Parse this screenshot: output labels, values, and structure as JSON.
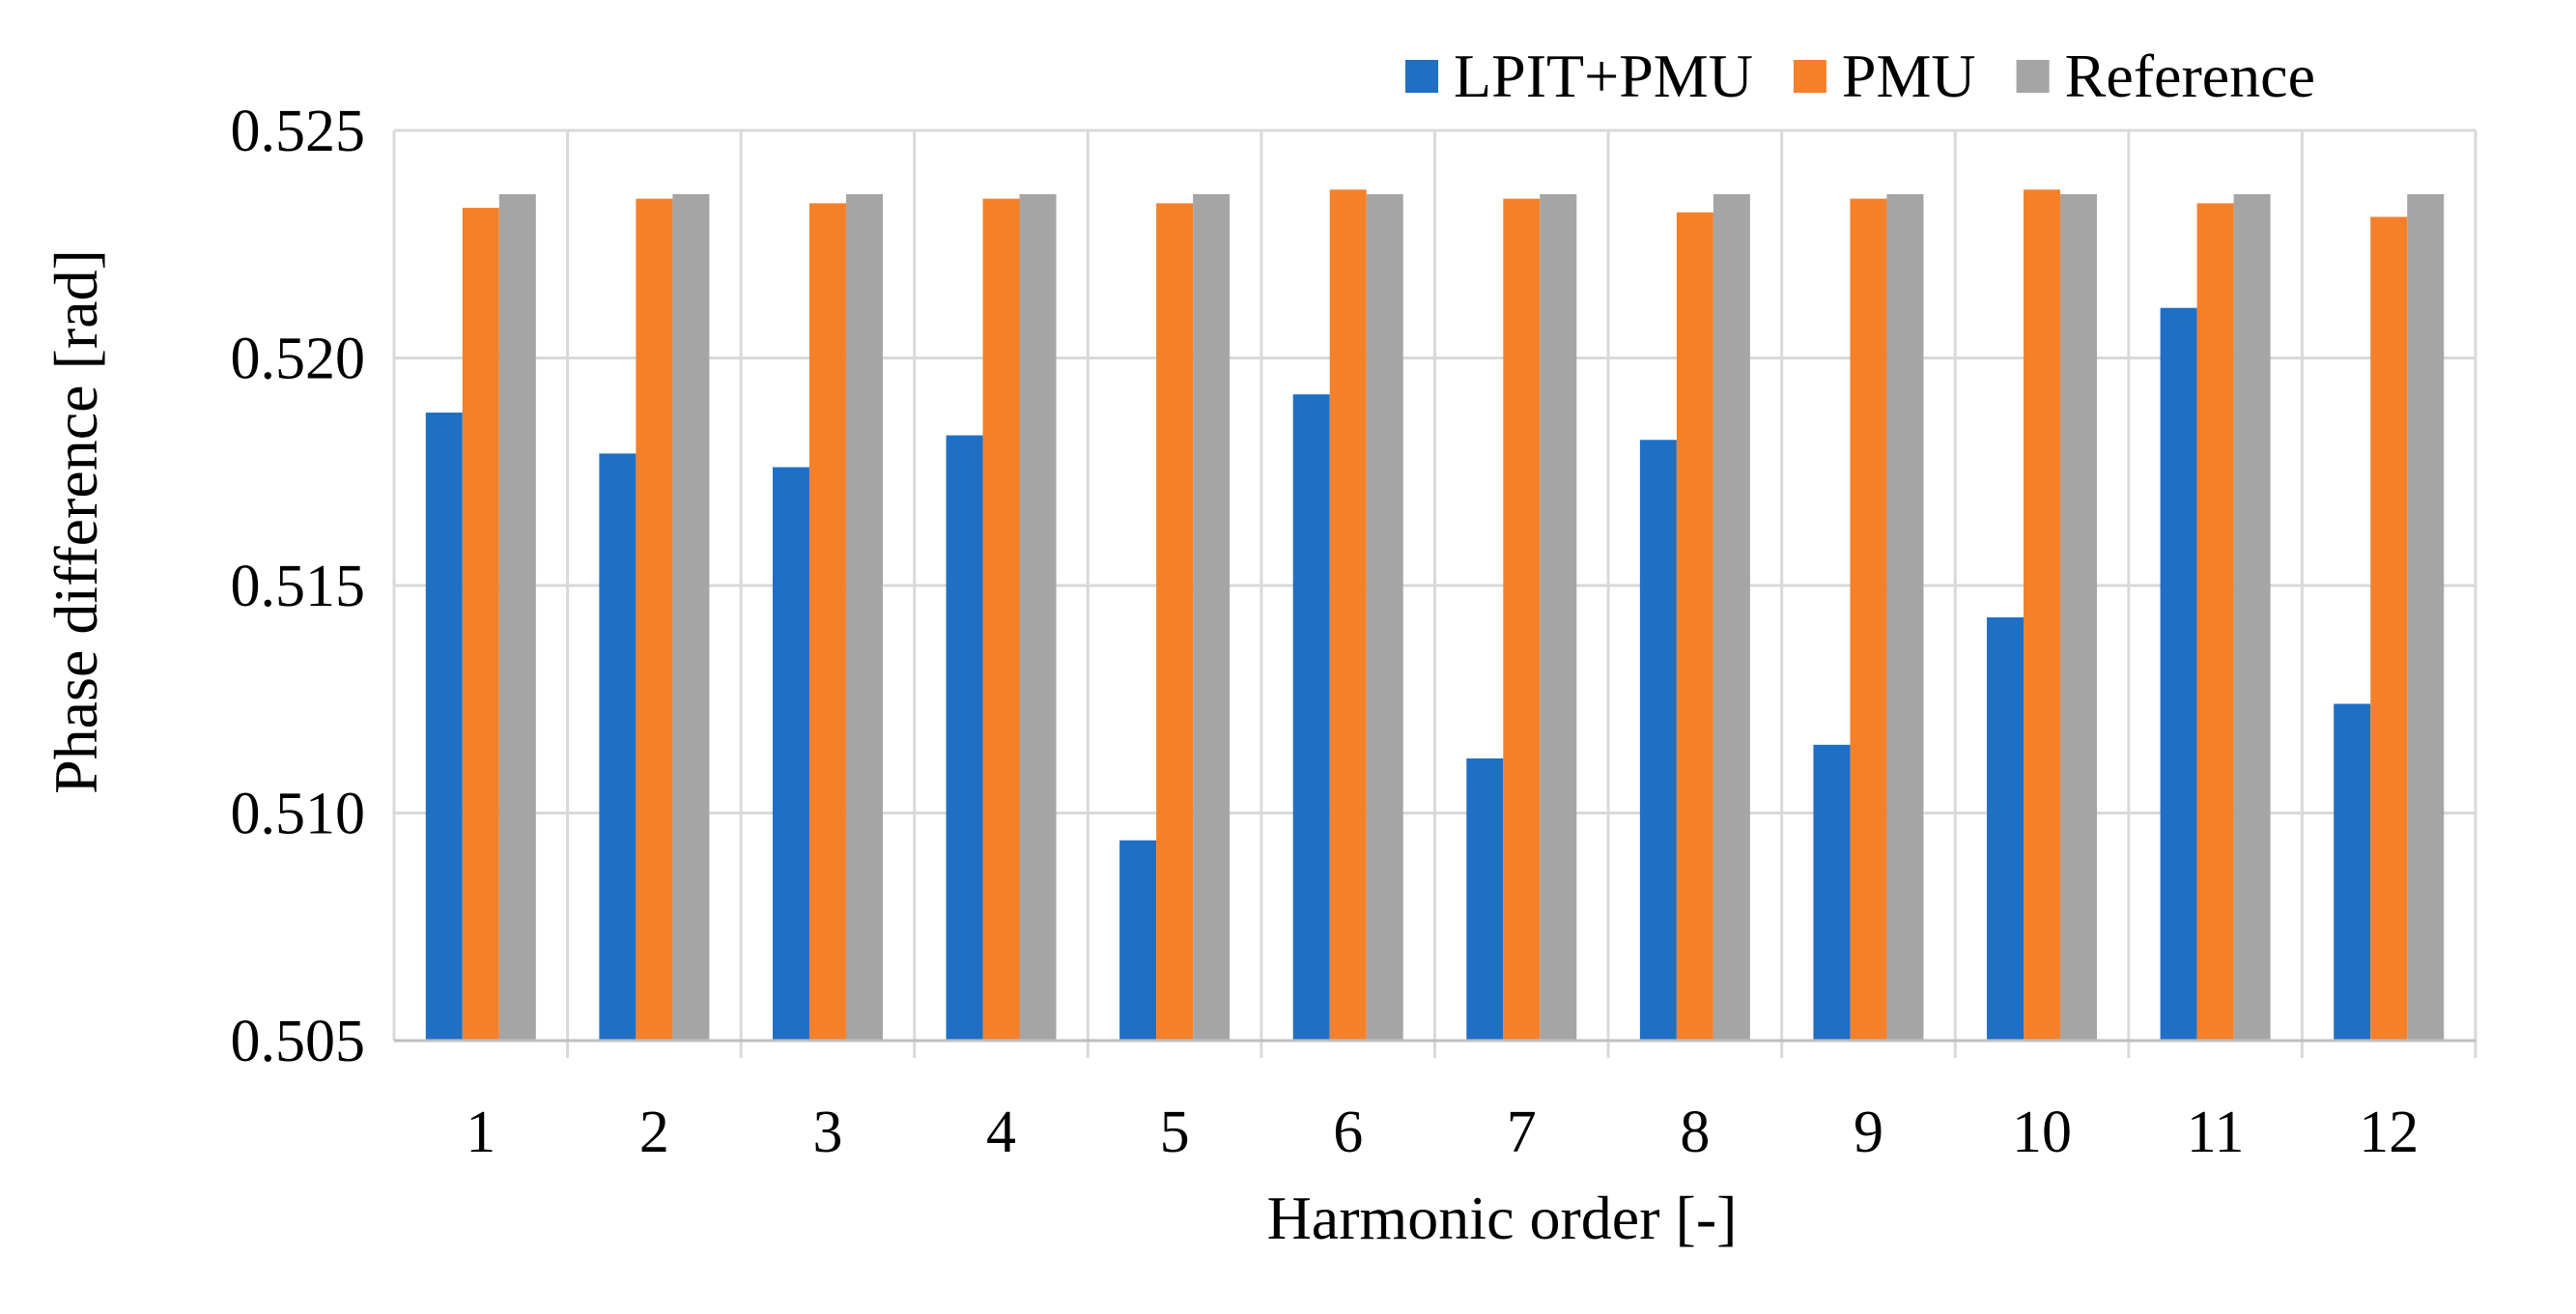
{
  "chart_data": {
    "type": "bar",
    "title": "",
    "xlabel": "Harmonic order [-]",
    "ylabel": "Phase difference [rad]",
    "categories": [
      "1",
      "2",
      "3",
      "4",
      "5",
      "6",
      "7",
      "8",
      "9",
      "10",
      "11",
      "12"
    ],
    "ylim": [
      0.505,
      0.525
    ],
    "yticks": [
      0.505,
      0.51,
      0.515,
      0.52,
      0.525
    ],
    "ytick_labels": [
      "0.505",
      "0.510",
      "0.515",
      "0.520",
      "0.525"
    ],
    "grid": true,
    "legend_position": "top-right",
    "series": [
      {
        "name": "LPIT+PMU",
        "color": "#1f6fc5",
        "values": [
          0.5188,
          0.5179,
          0.5176,
          0.5183,
          0.5094,
          0.5192,
          0.5112,
          0.5182,
          0.5115,
          0.5143,
          0.5211,
          0.5124
        ]
      },
      {
        "name": "PMU",
        "color": "#f5802a",
        "values": [
          0.5233,
          0.5235,
          0.5234,
          0.5235,
          0.5234,
          0.5237,
          0.5235,
          0.5232,
          0.5235,
          0.5237,
          0.5234,
          0.5231
        ]
      },
      {
        "name": "Reference",
        "color": "#a5a5a5",
        "values": [
          0.5236,
          0.5236,
          0.5236,
          0.5236,
          0.5236,
          0.5236,
          0.5236,
          0.5236,
          0.5236,
          0.5236,
          0.5236,
          0.5236
        ]
      }
    ]
  }
}
